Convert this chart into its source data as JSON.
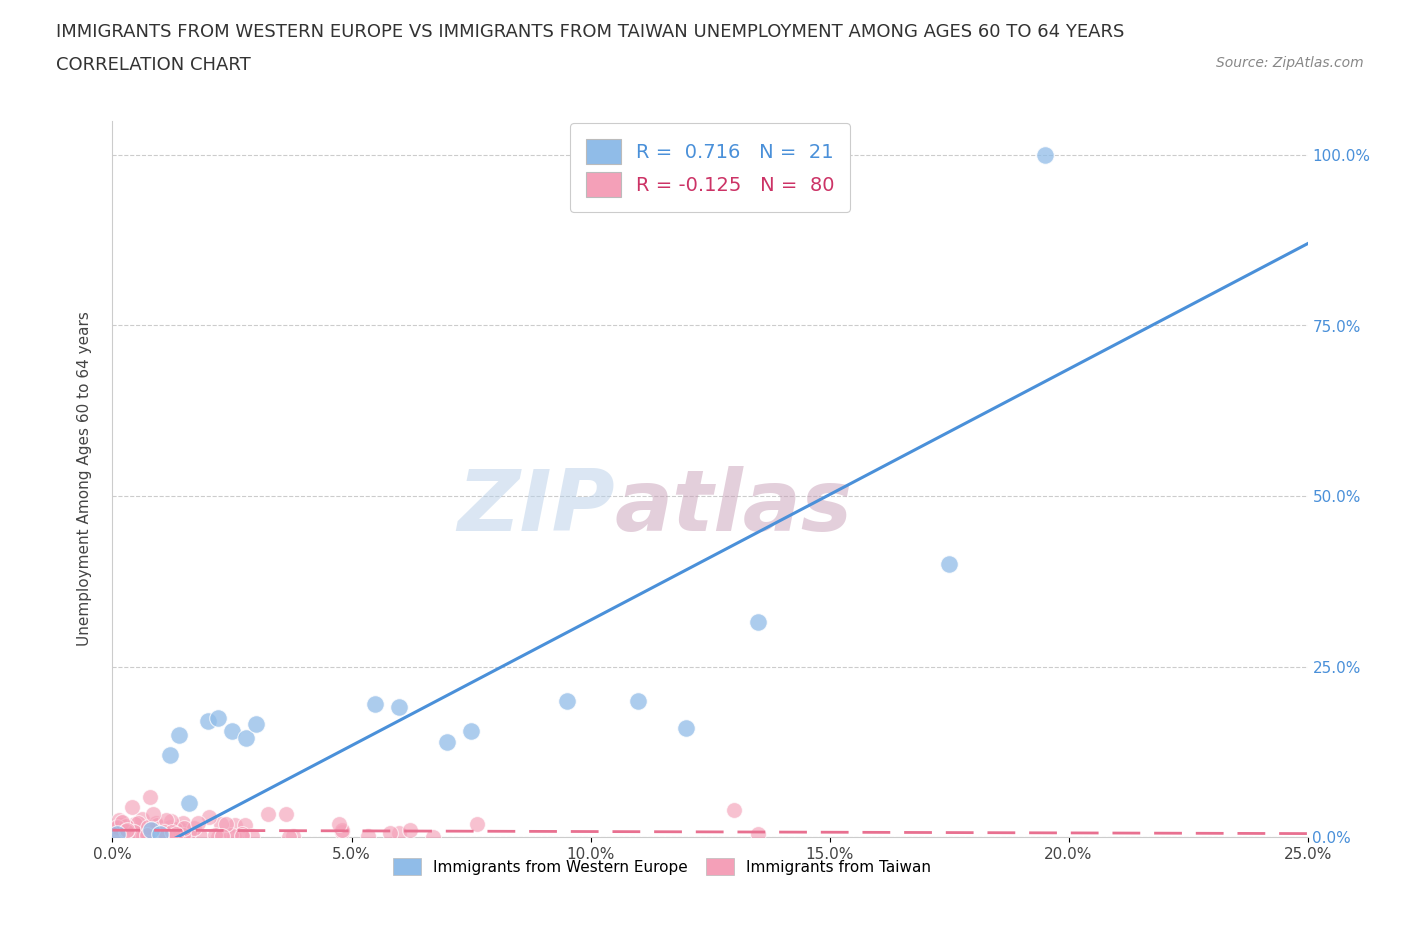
{
  "title_line1": "IMMIGRANTS FROM WESTERN EUROPE VS IMMIGRANTS FROM TAIWAN UNEMPLOYMENT AMONG AGES 60 TO 64 YEARS",
  "title_line2": "CORRELATION CHART",
  "source_text": "Source: ZipAtlas.com",
  "ylabel": "Unemployment Among Ages 60 to 64 years",
  "watermark_zip": "ZIP",
  "watermark_atlas": "atlas",
  "legend_entries": [
    {
      "label": "R =  0.716   N =  21",
      "color": "#a8c8f0"
    },
    {
      "label": "R = -0.125   N =  80",
      "color": "#f8b0c0"
    }
  ],
  "bottom_legend": [
    "Immigrants from Western Europe",
    "Immigrants from Taiwan"
  ],
  "blue_color": "#90bce8",
  "pink_color": "#f4a0b8",
  "blue_line_color": "#4a90d9",
  "pink_line_color": "#e87090",
  "xmin": 0.0,
  "xmax": 0.25,
  "ymin": 0.0,
  "ymax": 1.05,
  "xtick_labels": [
    "0.0%",
    "5.0%",
    "10.0%",
    "15.0%",
    "20.0%",
    "25.0%"
  ],
  "ytick_labels": [
    "0.0%",
    "25.0%",
    "50.0%",
    "75.0%",
    "100.0%"
  ],
  "ytick_pos": [
    0.0,
    0.25,
    0.5,
    0.75,
    1.0
  ],
  "blue_scatter_x": [
    0.001,
    0.008,
    0.01,
    0.012,
    0.014,
    0.016,
    0.02,
    0.022,
    0.025,
    0.028,
    0.03,
    0.055,
    0.06,
    0.07,
    0.075,
    0.095,
    0.11,
    0.12,
    0.135,
    0.175,
    0.195
  ],
  "blue_scatter_y": [
    0.005,
    0.01,
    0.005,
    0.12,
    0.15,
    0.05,
    0.17,
    0.175,
    0.155,
    0.145,
    0.165,
    0.195,
    0.19,
    0.14,
    0.155,
    0.2,
    0.2,
    0.16,
    0.315,
    0.4,
    1.0
  ],
  "background_color": "#ffffff",
  "grid_color": "#cccccc",
  "title_fontsize": 13,
  "axis_label_fontsize": 11
}
